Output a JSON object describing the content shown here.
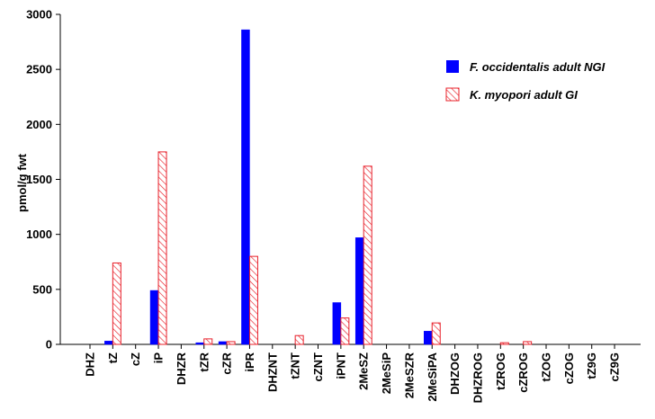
{
  "chart_data": {
    "type": "bar",
    "title": "",
    "xlabel": "",
    "ylabel": "pmol/g fwt",
    "ylim": [
      0,
      3000
    ],
    "yticks": [
      "0",
      "500",
      "1000",
      "1500",
      "2000",
      "2500",
      "3000"
    ],
    "grid": false,
    "legend_position": "top-right",
    "categories": [
      "DHZ",
      "tZ",
      "cZ",
      "iP",
      "DHZR",
      "tZR",
      "cZR",
      "iPR",
      "DHZNT",
      "tZNT",
      "cZNT",
      "iPNT",
      "2MeSZ",
      "2MeSiP",
      "2MeSZR",
      "2MeSiPA",
      "DHZOG",
      "DHZROG",
      "tZROG",
      "cZROG",
      "tZOG",
      "cZOG",
      "tZ9G",
      "cZ9G"
    ],
    "series": [
      {
        "name": "F. occidentalis adult NGI",
        "color": "#0000ff",
        "fill": "solid",
        "values": [
          0,
          30,
          0,
          490,
          0,
          15,
          25,
          2860,
          0,
          0,
          0,
          380,
          970,
          0,
          0,
          120,
          0,
          0,
          0,
          0,
          0,
          0,
          0,
          0
        ]
      },
      {
        "name": "K. myopori adult GI",
        "color": "#e8202a",
        "fill": "hatched",
        "values": [
          0,
          740,
          0,
          1750,
          0,
          50,
          25,
          800,
          0,
          80,
          0,
          240,
          1620,
          0,
          0,
          195,
          0,
          0,
          15,
          25,
          0,
          0,
          0,
          0
        ]
      }
    ]
  }
}
